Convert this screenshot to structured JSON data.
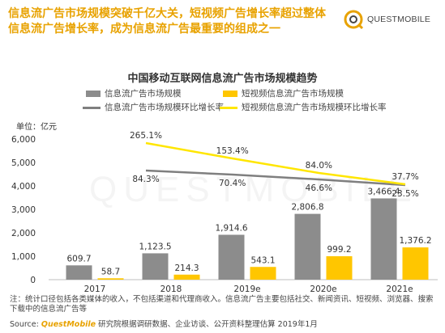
{
  "headline": "信息流广告市场规模突破千亿大关，短视频广告增长率超过整体信息流广告增长率，成为信息流广告最重要的组成之一",
  "logo": {
    "text": "QUESTMOBILE",
    "icon": "questmobile-logo-icon"
  },
  "watermark": "QUESTMOBILE",
  "colors": {
    "gray_bar": "#8c8c8c",
    "yellow_bar": "#ffc600",
    "gray_line": "#7f7f7f",
    "yellow_line": "#ffe600",
    "accent": "#e8a200"
  },
  "legend": {
    "bar1": "信息流广告市场规模",
    "bar2": "短视频信息流广告市场规模",
    "line1": "信息流广告市场规模环比增长率",
    "line2": "短视频信息流广告市场规模环比增长率"
  },
  "unit_label": "单位：亿元",
  "chart_data": {
    "type": "bar",
    "title": "中国移动互联网信息流广告市场规模趋势",
    "categories": [
      "2017",
      "2018",
      "2019e",
      "2020e",
      "2021e"
    ],
    "ylim": [
      0,
      6000
    ],
    "yticks": [
      "0",
      "1,000",
      "2,000",
      "3,000",
      "4,000",
      "5,000",
      "6,000"
    ],
    "grid": false,
    "legend_position": "top",
    "series": [
      {
        "name": "信息流广告市场规模",
        "type": "bar",
        "values": [
          609.7,
          1123.5,
          1914.6,
          2806.8,
          3466.4
        ],
        "labels": [
          "609.7",
          "1,123.5",
          "1,914.6",
          "2,806.8",
          "3,466.4"
        ]
      },
      {
        "name": "短视频信息流广告市场规模",
        "type": "bar",
        "values": [
          58.7,
          214.3,
          543.1,
          999.2,
          1376.2
        ],
        "labels": [
          "58.7",
          "214.3",
          "543.1",
          "999.2",
          "1,376.2"
        ]
      },
      {
        "name": "信息流广告市场规模环比增长率",
        "type": "line",
        "x": [
          "2018",
          "2019e",
          "2020e",
          "2021e"
        ],
        "values": [
          84.3,
          70.4,
          46.6,
          23.5
        ],
        "labels": [
          "84.3%",
          "70.4%",
          "46.6%",
          "23.5%"
        ],
        "scale_note": "secondary axis, not shown"
      },
      {
        "name": "短视频信息流广告市场规模环比增长率",
        "type": "line",
        "x": [
          "2018",
          "2019e",
          "2020e",
          "2021e"
        ],
        "values": [
          265.1,
          153.4,
          84.0,
          37.7
        ],
        "labels": [
          "265.1%",
          "153.4%",
          "84.0%",
          "37.7%"
        ],
        "scale_note": "secondary axis, not shown"
      }
    ]
  },
  "note": "注：统计口径包括各类媒体的收入，不包括渠道和代理商收入。信息流广告主要包括社交、新闻资讯、短视频、浏览器、搜索下载中的信息流广告等",
  "source": {
    "prefix": "Source:",
    "brand": "QuestMobile",
    "text": "研究院根据调研数据、企业访谈、公开资料整理估算 2019年1月"
  }
}
